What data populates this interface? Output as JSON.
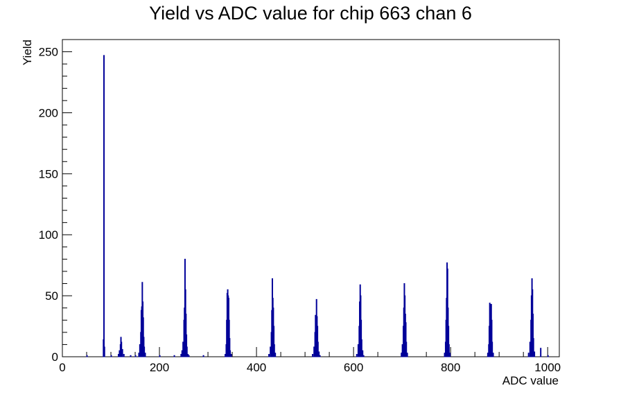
{
  "chart_data": {
    "type": "histogram",
    "title": "Yield vs ADC value for chip 663 chan 6",
    "xlabel": "ADC value",
    "ylabel": "Yield",
    "xlim": [
      0,
      1024
    ],
    "ylim": [
      0,
      260
    ],
    "x_ticks": [
      0,
      200,
      400,
      600,
      800,
      1000
    ],
    "y_ticks": [
      0,
      50,
      100,
      150,
      200,
      250
    ],
    "grid": false,
    "line_color": "#000099",
    "bins": [
      {
        "x": 50,
        "y": 1
      },
      {
        "x": 84,
        "y": 14
      },
      {
        "x": 85,
        "y": 247
      },
      {
        "x": 86,
        "y": 8
      },
      {
        "x": 100,
        "y": 1
      },
      {
        "x": 115,
        "y": 2
      },
      {
        "x": 117,
        "y": 5
      },
      {
        "x": 119,
        "y": 10
      },
      {
        "x": 120,
        "y": 16
      },
      {
        "x": 121,
        "y": 12
      },
      {
        "x": 123,
        "y": 6
      },
      {
        "x": 126,
        "y": 2
      },
      {
        "x": 140,
        "y": 1
      },
      {
        "x": 150,
        "y": 1
      },
      {
        "x": 157,
        "y": 3
      },
      {
        "x": 159,
        "y": 10
      },
      {
        "x": 161,
        "y": 20
      },
      {
        "x": 162,
        "y": 38
      },
      {
        "x": 163,
        "y": 41
      },
      {
        "x": 164,
        "y": 61
      },
      {
        "x": 165,
        "y": 45
      },
      {
        "x": 166,
        "y": 32
      },
      {
        "x": 167,
        "y": 16
      },
      {
        "x": 168,
        "y": 8
      },
      {
        "x": 170,
        "y": 3
      },
      {
        "x": 200,
        "y": 1
      },
      {
        "x": 230,
        "y": 1
      },
      {
        "x": 244,
        "y": 2
      },
      {
        "x": 246,
        "y": 5
      },
      {
        "x": 248,
        "y": 12
      },
      {
        "x": 250,
        "y": 30
      },
      {
        "x": 251,
        "y": 40
      },
      {
        "x": 252,
        "y": 80
      },
      {
        "x": 253,
        "y": 55
      },
      {
        "x": 254,
        "y": 35
      },
      {
        "x": 255,
        "y": 18
      },
      {
        "x": 256,
        "y": 8
      },
      {
        "x": 258,
        "y": 2
      },
      {
        "x": 260,
        "y": 1
      },
      {
        "x": 290,
        "y": 1
      },
      {
        "x": 335,
        "y": 2
      },
      {
        "x": 337,
        "y": 10
      },
      {
        "x": 338,
        "y": 30
      },
      {
        "x": 339,
        "y": 52
      },
      {
        "x": 340,
        "y": 55
      },
      {
        "x": 341,
        "y": 50
      },
      {
        "x": 342,
        "y": 48
      },
      {
        "x": 343,
        "y": 30
      },
      {
        "x": 344,
        "y": 15
      },
      {
        "x": 345,
        "y": 5
      },
      {
        "x": 347,
        "y": 2
      },
      {
        "x": 425,
        "y": 2
      },
      {
        "x": 428,
        "y": 8
      },
      {
        "x": 430,
        "y": 20
      },
      {
        "x": 431,
        "y": 38
      },
      {
        "x": 432,
        "y": 64
      },
      {
        "x": 433,
        "y": 48
      },
      {
        "x": 434,
        "y": 40
      },
      {
        "x": 435,
        "y": 25
      },
      {
        "x": 436,
        "y": 10
      },
      {
        "x": 438,
        "y": 3
      },
      {
        "x": 515,
        "y": 2
      },
      {
        "x": 518,
        "y": 8
      },
      {
        "x": 520,
        "y": 20
      },
      {
        "x": 521,
        "y": 34
      },
      {
        "x": 522,
        "y": 30
      },
      {
        "x": 523,
        "y": 47
      },
      {
        "x": 524,
        "y": 33
      },
      {
        "x": 525,
        "y": 25
      },
      {
        "x": 526,
        "y": 12
      },
      {
        "x": 528,
        "y": 4
      },
      {
        "x": 530,
        "y": 1
      },
      {
        "x": 606,
        "y": 2
      },
      {
        "x": 609,
        "y": 10
      },
      {
        "x": 611,
        "y": 25
      },
      {
        "x": 612,
        "y": 45
      },
      {
        "x": 613,
        "y": 59
      },
      {
        "x": 614,
        "y": 50
      },
      {
        "x": 615,
        "y": 30
      },
      {
        "x": 616,
        "y": 14
      },
      {
        "x": 618,
        "y": 5
      },
      {
        "x": 620,
        "y": 1
      },
      {
        "x": 698,
        "y": 3
      },
      {
        "x": 700,
        "y": 10
      },
      {
        "x": 702,
        "y": 25
      },
      {
        "x": 703,
        "y": 40
      },
      {
        "x": 704,
        "y": 60
      },
      {
        "x": 705,
        "y": 50
      },
      {
        "x": 706,
        "y": 35
      },
      {
        "x": 707,
        "y": 28
      },
      {
        "x": 708,
        "y": 12
      },
      {
        "x": 710,
        "y": 3
      },
      {
        "x": 787,
        "y": 3
      },
      {
        "x": 789,
        "y": 12
      },
      {
        "x": 790,
        "y": 30
      },
      {
        "x": 791,
        "y": 48
      },
      {
        "x": 792,
        "y": 77
      },
      {
        "x": 793,
        "y": 72
      },
      {
        "x": 794,
        "y": 40
      },
      {
        "x": 795,
        "y": 25
      },
      {
        "x": 796,
        "y": 10
      },
      {
        "x": 798,
        "y": 3
      },
      {
        "x": 876,
        "y": 3
      },
      {
        "x": 878,
        "y": 10
      },
      {
        "x": 879,
        "y": 25
      },
      {
        "x": 880,
        "y": 44
      },
      {
        "x": 881,
        "y": 43
      },
      {
        "x": 882,
        "y": 40
      },
      {
        "x": 883,
        "y": 43
      },
      {
        "x": 884,
        "y": 30
      },
      {
        "x": 885,
        "y": 12
      },
      {
        "x": 887,
        "y": 3
      },
      {
        "x": 960,
        "y": 3
      },
      {
        "x": 963,
        "y": 12
      },
      {
        "x": 965,
        "y": 30
      },
      {
        "x": 966,
        "y": 50
      },
      {
        "x": 967,
        "y": 64
      },
      {
        "x": 968,
        "y": 55
      },
      {
        "x": 969,
        "y": 35
      },
      {
        "x": 970,
        "y": 15
      },
      {
        "x": 972,
        "y": 4
      },
      {
        "x": 985,
        "y": 7
      },
      {
        "x": 1000,
        "y": 1
      }
    ]
  }
}
